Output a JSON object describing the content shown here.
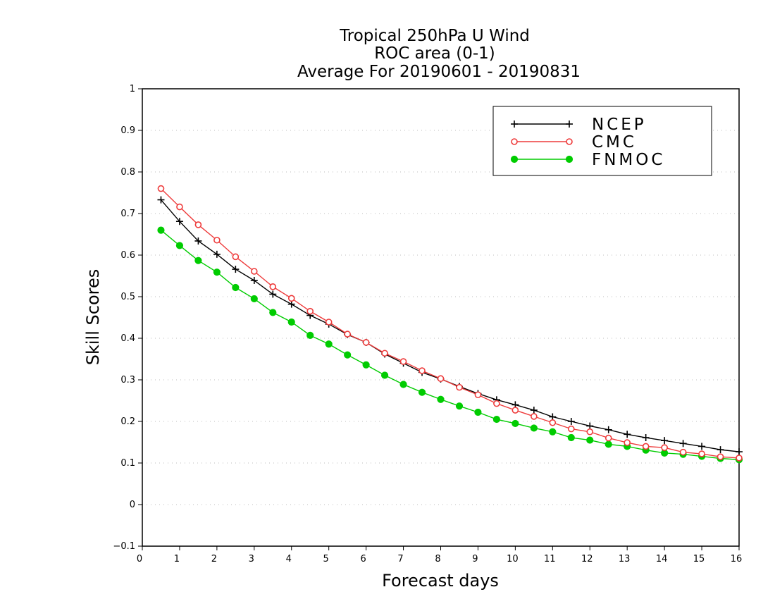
{
  "chart_data": {
    "type": "line",
    "title": [
      "Tropical 250hPa U Wind",
      "ROC area (0-1)",
      "Average For 20190601 - 20190831"
    ],
    "xlabel": "Forecast days",
    "ylabel": "Skill Scores",
    "xlim": [
      0,
      16
    ],
    "ylim": [
      -0.1,
      1
    ],
    "xticks": [
      0,
      1,
      2,
      3,
      4,
      5,
      6,
      7,
      8,
      9,
      10,
      11,
      12,
      13,
      14,
      15,
      16
    ],
    "yticks": [
      -0.1,
      0,
      0.1,
      0.2,
      0.3,
      0.4,
      0.5,
      0.6,
      0.7,
      0.8,
      0.9,
      1
    ],
    "grid": "horizontal-dotted",
    "legend_position": "top-right",
    "x": [
      0.5,
      1,
      1.5,
      2,
      2.5,
      3,
      3.5,
      4,
      4.5,
      5,
      5.5,
      6,
      6.5,
      7,
      7.5,
      8,
      8.5,
      9,
      9.5,
      10,
      10.5,
      11,
      11.5,
      12,
      12.5,
      13,
      13.5,
      14,
      14.5,
      15,
      15.5,
      16
    ],
    "series": [
      {
        "name": "NCEP",
        "color": "#000000",
        "marker": "plus",
        "values": [
          0.733,
          0.681,
          0.634,
          0.602,
          0.566,
          0.539,
          0.506,
          0.482,
          0.455,
          0.434,
          0.409,
          0.39,
          0.362,
          0.34,
          0.318,
          0.302,
          0.284,
          0.267,
          0.252,
          0.24,
          0.227,
          0.211,
          0.2,
          0.189,
          0.18,
          0.169,
          0.161,
          0.154,
          0.147,
          0.14,
          0.132,
          0.127
        ]
      },
      {
        "name": "CMC",
        "color": "#ee3b3b",
        "marker": "open-circle",
        "values": [
          0.76,
          0.716,
          0.673,
          0.636,
          0.596,
          0.561,
          0.524,
          0.496,
          0.465,
          0.439,
          0.41,
          0.39,
          0.364,
          0.344,
          0.322,
          0.303,
          0.282,
          0.264,
          0.243,
          0.227,
          0.212,
          0.197,
          0.182,
          0.175,
          0.16,
          0.149,
          0.14,
          0.137,
          0.126,
          0.122,
          0.115,
          0.112
        ]
      },
      {
        "name": "FNMOC",
        "color": "#00cc00",
        "marker": "filled-circle",
        "values": [
          0.66,
          0.623,
          0.587,
          0.559,
          0.522,
          0.495,
          0.462,
          0.439,
          0.407,
          0.386,
          0.36,
          0.336,
          0.311,
          0.289,
          0.27,
          0.253,
          0.237,
          0.222,
          0.205,
          0.195,
          0.184,
          0.175,
          0.161,
          0.155,
          0.145,
          0.14,
          0.131,
          0.124,
          0.121,
          0.116,
          0.111,
          0.108
        ]
      }
    ]
  }
}
